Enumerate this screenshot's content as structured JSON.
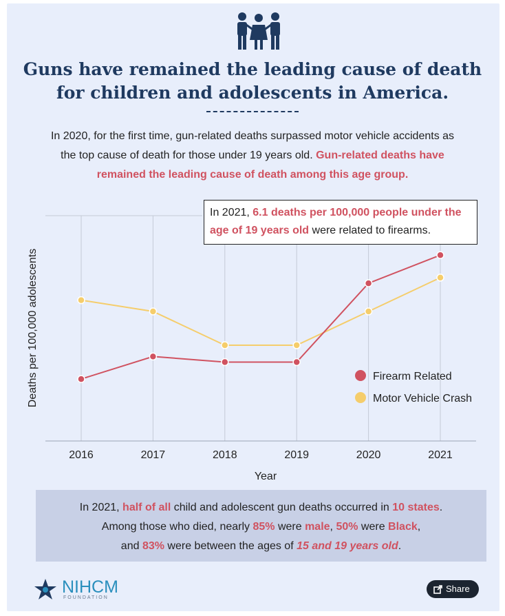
{
  "header": {
    "title_line1": "Guns have remained the leading cause of death",
    "title_line2": "for children and adolescents in America."
  },
  "intro": {
    "line1": "In 2020, for the first time, gun-related deaths surpassed motor vehicle accidents as",
    "line2": "the top cause of death for those under 19 years old.",
    "highlight_a": "Gun-related deaths have",
    "highlight_b": "remained the leading cause of death among this age group."
  },
  "callout": {
    "pre": "In 2021, ",
    "highlight": "6.1 deaths per 100,000 people under the age of 19 years old",
    "post": " were related to firearms."
  },
  "chart_data": {
    "type": "line",
    "x": [
      "2016",
      "2017",
      "2018",
      "2019",
      "2020",
      "2021"
    ],
    "xlabel": "Year",
    "ylabel": "Deaths per 100,000 adolescents",
    "series": [
      {
        "name": "Firearm Related",
        "color": "#d05260",
        "values": [
          3.9,
          4.3,
          4.2,
          4.2,
          5.6,
          6.1
        ]
      },
      {
        "name": "Motor Vehicle Crash",
        "color": "#f5cd6b",
        "values": [
          5.3,
          5.1,
          4.5,
          4.5,
          5.1,
          5.7
        ]
      }
    ],
    "ylim": [
      2.8,
      6.8
    ],
    "legend": "right"
  },
  "facts": {
    "l1_a": "In 2021, ",
    "l1_b": "half of all",
    "l1_c": " child and adolescent gun deaths occurred in ",
    "l1_d": "10 states",
    "l1_e": ".",
    "l2_a": "Among those who died, nearly ",
    "l2_b": "85%",
    "l2_c": " were ",
    "l2_d": "male",
    "l2_e": ", ",
    "l2_f": "50%",
    "l2_g": " were ",
    "l2_h": "Black",
    "l2_i": ",",
    "l3_a": "and ",
    "l3_b": "83%",
    "l3_c": " were between the ages of ",
    "l3_d": "15 and 19 years old",
    "l3_e": "."
  },
  "footer": {
    "logo_text": "NIHCM",
    "logo_sub": "FOUNDATION",
    "share_label": "Share"
  },
  "colors": {
    "background": "#e8eefb",
    "title": "#1f3a60",
    "accent": "#d05260",
    "fact_box": "#c8d0e6"
  },
  "icons": [
    "people-group-icon",
    "star-logo-icon",
    "share-icon"
  ]
}
